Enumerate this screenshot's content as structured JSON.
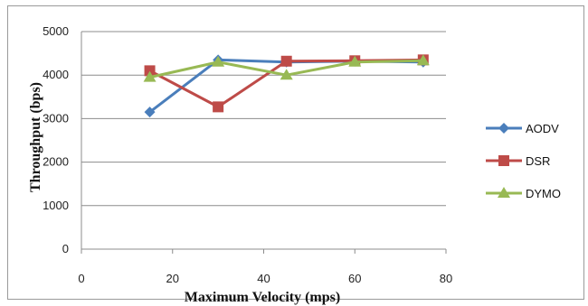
{
  "chart_data": {
    "type": "line",
    "title": "",
    "xlabel": "Maximum Velocity (mps)",
    "ylabel": "Throughput (bps)",
    "xlim": [
      0,
      80
    ],
    "ylim": [
      0,
      5000
    ],
    "xticks": [
      0,
      20,
      40,
      60,
      80
    ],
    "yticks": [
      0,
      1000,
      2000,
      3000,
      4000,
      5000
    ],
    "grid": "horizontal",
    "legend": "right",
    "series": [
      {
        "name": "AODV",
        "color": "#4a7ebb",
        "marker": "diamond",
        "x": [
          15,
          30,
          45,
          60,
          75
        ],
        "y": [
          3150,
          4350,
          4300,
          4320,
          4300
        ]
      },
      {
        "name": "DSR",
        "color": "#be4b48",
        "marker": "square",
        "x": [
          15,
          30,
          45,
          60,
          75
        ],
        "y": [
          4100,
          3270,
          4320,
          4330,
          4350
        ]
      },
      {
        "name": "DYMO",
        "color": "#98b954",
        "marker": "triangle",
        "x": [
          15,
          30,
          45,
          60,
          75
        ],
        "y": [
          3950,
          4300,
          4000,
          4300,
          4330
        ]
      }
    ]
  }
}
